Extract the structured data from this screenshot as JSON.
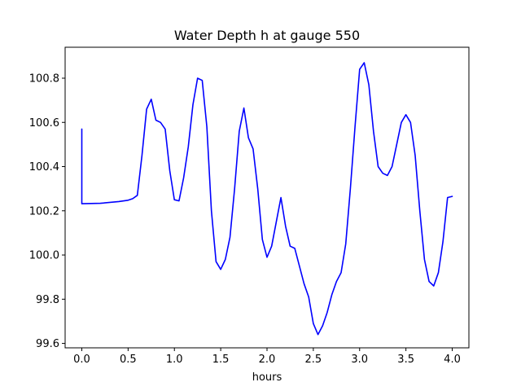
{
  "chart_data": {
    "type": "line",
    "title": "Water Depth h at gauge 550",
    "xlabel": "hours",
    "ylabel": "",
    "xlim": [
      -0.18,
      4.18
    ],
    "ylim": [
      99.58,
      100.94
    ],
    "xticks": [
      0.0,
      0.5,
      1.0,
      1.5,
      2.0,
      2.5,
      3.0,
      3.5,
      4.0
    ],
    "xtick_labels": [
      "0.0",
      "0.5",
      "1.0",
      "1.5",
      "2.0",
      "2.5",
      "3.0",
      "3.5",
      "4.0"
    ],
    "yticks": [
      99.6,
      99.8,
      100.0,
      100.2,
      100.4,
      100.6,
      100.8
    ],
    "ytick_labels": [
      "99.6",
      "99.8",
      "100.0",
      "100.2",
      "100.4",
      "100.6",
      "100.8"
    ],
    "grid": false,
    "legend": false,
    "series": [
      {
        "color": "#0000ff",
        "x": [
          0.0,
          0.0,
          0.2,
          0.4,
          0.5,
          0.55,
          0.6,
          0.65,
          0.7,
          0.75,
          0.8,
          0.85,
          0.9,
          0.95,
          1.0,
          1.05,
          1.1,
          1.15,
          1.2,
          1.25,
          1.3,
          1.35,
          1.4,
          1.45,
          1.5,
          1.55,
          1.6,
          1.65,
          1.7,
          1.75,
          1.8,
          1.85,
          1.9,
          1.95,
          2.0,
          2.05,
          2.1,
          2.15,
          2.2,
          2.25,
          2.3,
          2.35,
          2.4,
          2.45,
          2.5,
          2.55,
          2.6,
          2.65,
          2.7,
          2.75,
          2.8,
          2.85,
          2.9,
          2.95,
          3.0,
          3.05,
          3.1,
          3.15,
          3.2,
          3.25,
          3.3,
          3.35,
          3.4,
          3.45,
          3.5,
          3.55,
          3.6,
          3.65,
          3.7,
          3.75,
          3.8,
          3.85,
          3.9,
          3.95,
          4.0
        ],
        "y": [
          100.57,
          100.232,
          100.234,
          100.242,
          100.248,
          100.255,
          100.27,
          100.45,
          100.66,
          100.705,
          100.61,
          100.6,
          100.57,
          100.38,
          100.25,
          100.245,
          100.35,
          100.49,
          100.68,
          100.8,
          100.79,
          100.58,
          100.2,
          99.97,
          99.935,
          99.98,
          100.08,
          100.3,
          100.56,
          100.665,
          100.53,
          100.48,
          100.3,
          100.07,
          99.99,
          100.04,
          100.15,
          100.26,
          100.13,
          100.04,
          100.03,
          99.95,
          99.87,
          99.81,
          99.69,
          99.64,
          99.68,
          99.74,
          99.82,
          99.88,
          99.92,
          100.05,
          100.3,
          100.58,
          100.84,
          100.87,
          100.77,
          100.56,
          100.4,
          100.37,
          100.36,
          100.4,
          100.5,
          100.6,
          100.635,
          100.6,
          100.45,
          100.2,
          99.98,
          99.88,
          99.86,
          99.92,
          100.06,
          100.26,
          100.265
        ]
      }
    ]
  }
}
